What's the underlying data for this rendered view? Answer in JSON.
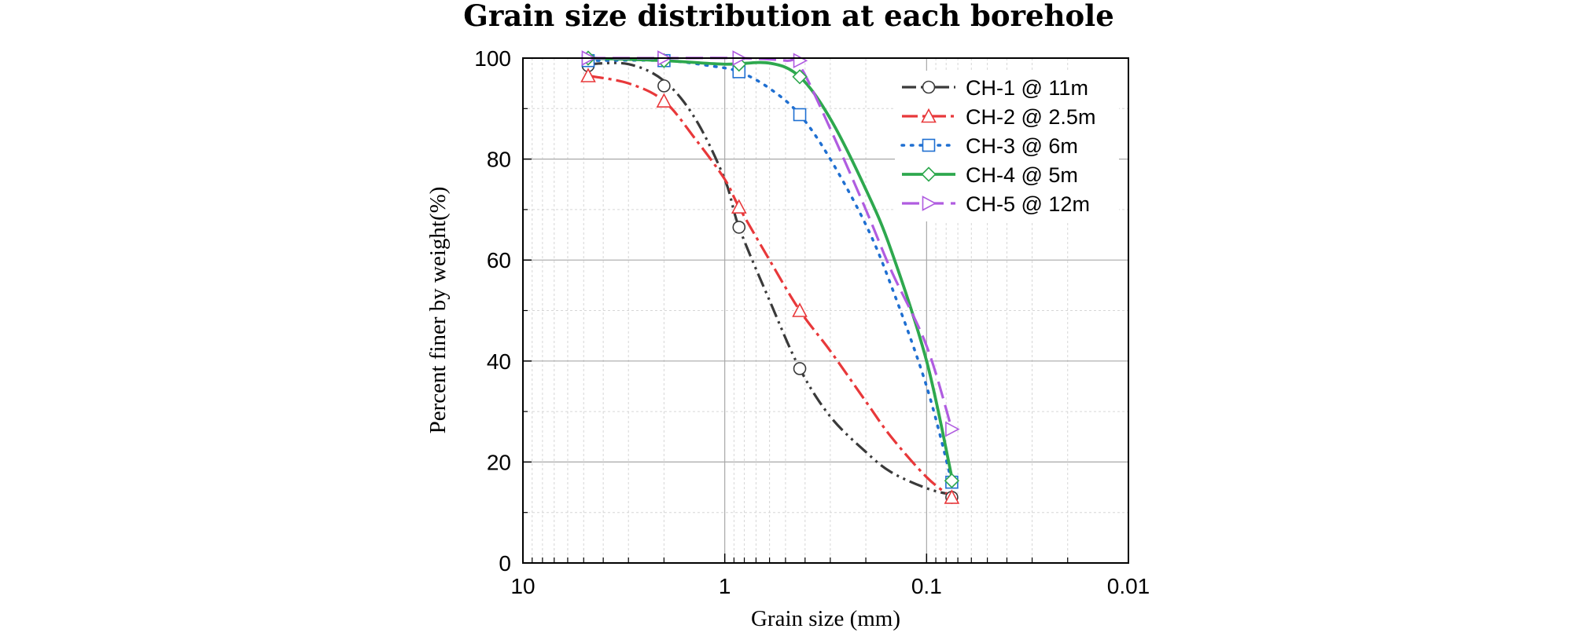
{
  "chart_data": {
    "type": "line",
    "title": "Grain size distribution at each borehole",
    "xlabel": "Grain size (mm)",
    "ylabel": "Percent finer by weight(%)",
    "x_scale": "log",
    "x_reversed": true,
    "xlim": [
      10,
      0.01
    ],
    "ylim": [
      0,
      100
    ],
    "x_ticks": [
      10,
      1,
      0.1,
      0.01
    ],
    "x_tick_labels": [
      "10",
      "1",
      "0.1",
      "0.01"
    ],
    "y_ticks": [
      0,
      20,
      40,
      60,
      80,
      100
    ],
    "y_tick_labels": [
      "0",
      "20",
      "40",
      "60",
      "80",
      "100"
    ],
    "grid": true,
    "legend_position": "top-right",
    "series": [
      {
        "name": "CH-1 @ 11m",
        "color": "#3a3a3a",
        "marker": "circle",
        "dash": "dash-dot-dot",
        "points": [
          [
            4.75,
            98.5
          ],
          [
            2.0,
            94.5
          ],
          [
            0.85,
            66.5
          ],
          [
            0.425,
            38.5
          ],
          [
            0.075,
            13.0
          ]
        ],
        "curve": [
          [
            4.75,
            98.8
          ],
          [
            3.0,
            98.8
          ],
          [
            2.0,
            95.5
          ],
          [
            1.4,
            88.0
          ],
          [
            1.0,
            76.0
          ],
          [
            0.85,
            66.5
          ],
          [
            0.6,
            52.0
          ],
          [
            0.425,
            38.5
          ],
          [
            0.3,
            29.0
          ],
          [
            0.2,
            22.0
          ],
          [
            0.15,
            18.0
          ],
          [
            0.1,
            14.8
          ],
          [
            0.075,
            13.5
          ]
        ]
      },
      {
        "name": "CH-2 @ 2.5m",
        "color": "#e8383a",
        "marker": "triangle-up",
        "dash": "dash-dot",
        "points": [
          [
            4.75,
            96.5
          ],
          [
            2.0,
            91.5
          ],
          [
            0.85,
            70.5
          ],
          [
            0.425,
            50.0
          ],
          [
            0.075,
            13.0
          ]
        ],
        "curve": [
          [
            4.75,
            96.5
          ],
          [
            3.0,
            95.0
          ],
          [
            2.0,
            91.5
          ],
          [
            1.4,
            84.0
          ],
          [
            1.0,
            76.0
          ],
          [
            0.85,
            70.5
          ],
          [
            0.6,
            60.0
          ],
          [
            0.425,
            50.0
          ],
          [
            0.3,
            42.0
          ],
          [
            0.2,
            32.0
          ],
          [
            0.15,
            25.0
          ],
          [
            0.1,
            17.0
          ],
          [
            0.075,
            13.0
          ]
        ]
      },
      {
        "name": "CH-3 @ 6m",
        "color": "#1f6fd1",
        "marker": "square",
        "dash": "dot",
        "points": [
          [
            4.75,
            99.5
          ],
          [
            2.0,
            99.5
          ],
          [
            0.85,
            97.3
          ],
          [
            0.425,
            88.8
          ],
          [
            0.075,
            16.0
          ]
        ],
        "curve": [
          [
            4.75,
            99.5
          ],
          [
            2.0,
            99.5
          ],
          [
            1.2,
            98.5
          ],
          [
            0.85,
            97.3
          ],
          [
            0.6,
            94.0
          ],
          [
            0.425,
            88.8
          ],
          [
            0.3,
            80.0
          ],
          [
            0.2,
            67.0
          ],
          [
            0.15,
            55.0
          ],
          [
            0.1,
            35.0
          ],
          [
            0.075,
            16.0
          ]
        ]
      },
      {
        "name": "CH-4 @ 5m",
        "color": "#2ea84e",
        "marker": "diamond",
        "dash": "solid",
        "points": [
          [
            4.75,
            100.0
          ],
          [
            2.0,
            99.5
          ],
          [
            0.85,
            98.8
          ],
          [
            0.425,
            96.3
          ],
          [
            0.075,
            16.3
          ]
        ],
        "curve": [
          [
            4.75,
            100.0
          ],
          [
            2.0,
            99.5
          ],
          [
            1.0,
            98.8
          ],
          [
            0.6,
            99.0
          ],
          [
            0.425,
            96.3
          ],
          [
            0.3,
            88.0
          ],
          [
            0.2,
            74.0
          ],
          [
            0.15,
            62.0
          ],
          [
            0.1,
            40.0
          ],
          [
            0.075,
            17.0
          ]
        ]
      },
      {
        "name": "CH-5 @ 12m",
        "color": "#b05ce0",
        "marker": "triangle-right",
        "dash": "dash",
        "points": [
          [
            4.75,
            100.0
          ],
          [
            2.0,
            100.0
          ],
          [
            0.85,
            100.0
          ],
          [
            0.425,
            99.5
          ],
          [
            0.075,
            26.5
          ]
        ],
        "curve": [
          [
            4.75,
            100.0
          ],
          [
            2.0,
            100.0
          ],
          [
            0.85,
            100.0
          ],
          [
            0.5,
            99.5
          ],
          [
            0.425,
            98.5
          ],
          [
            0.3,
            86.0
          ],
          [
            0.2,
            70.0
          ],
          [
            0.15,
            58.0
          ],
          [
            0.1,
            43.0
          ],
          [
            0.075,
            26.5
          ]
        ]
      }
    ]
  }
}
